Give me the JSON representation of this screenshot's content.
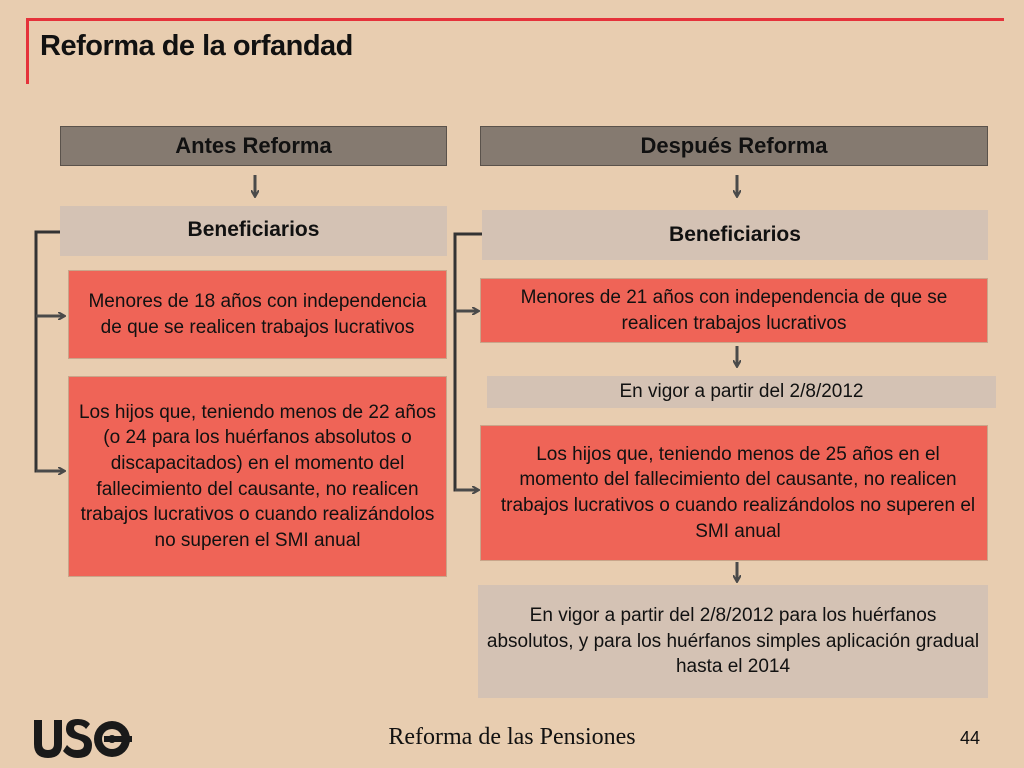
{
  "title": "Reforma de la orfandad",
  "before": {
    "header": "Antes Reforma",
    "beneficiarios": "Beneficiarios",
    "item1": "Menores de 18 años con independencia de que se realicen trabajos lucrativos",
    "item2": "Los hijos que, teniendo menos de 22 años (o 24 para los huérfanos absolutos o discapacitados) en el momento del fallecimiento del causante, no realicen trabajos lucrativos o cuando realizándolos no superen el SMI anual"
  },
  "after": {
    "header": "Después Reforma",
    "beneficiarios": "Beneficiarios",
    "item1": "Menores de 21 años con independencia de que se realicen trabajos lucrativos",
    "note1": "En vigor a partir del 2/8/2012",
    "item2": "Los hijos que, teniendo menos de 25 años en el momento del fallecimiento del causante, no realicen trabajos lucrativos o cuando realizándolos no superen el SMI anual",
    "note2": "En vigor a partir del 2/8/2012 para los huérfanos absolutos, y para los huérfanos simples aplicación gradual hasta el 2014"
  },
  "footer": {
    "logo": "USO",
    "text": "Reforma de las Pensiones",
    "page": "44"
  },
  "colors": {
    "background": "#e8cdb0",
    "accent": "#e5323a",
    "header_box": "#857a70",
    "grey_box": "#d4c2b4",
    "red_box": "#ef6457",
    "connector": "#4a4a4a"
  }
}
